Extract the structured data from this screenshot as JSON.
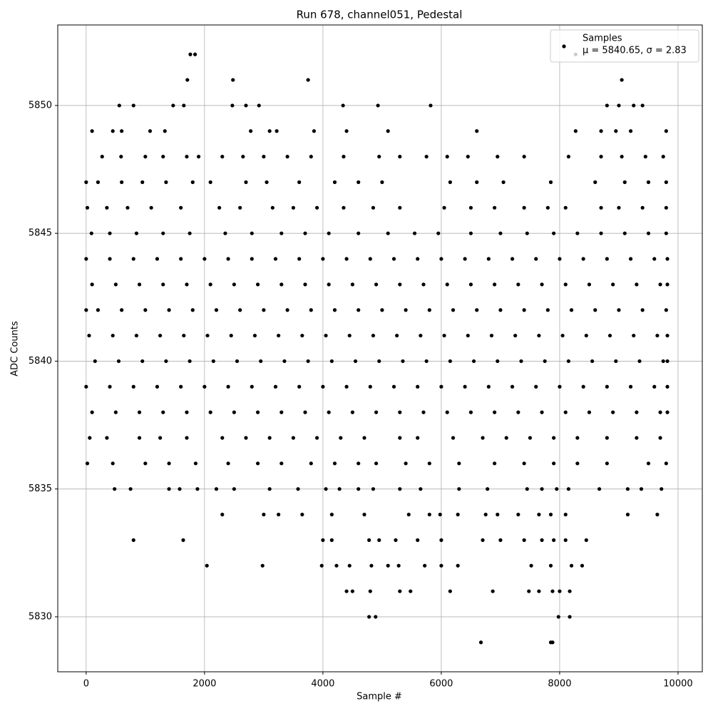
{
  "chart_data": {
    "type": "scatter",
    "title": "Run 678, channel051, Pedestal",
    "x_label": "Sample #",
    "y_label": "ADC Counts",
    "xlim": [
      -480,
      10410
    ],
    "ylim": [
      5827.85,
      5853.15
    ],
    "xticks": [
      0,
      2000,
      4000,
      6000,
      8000,
      10000
    ],
    "yticks": [
      5830,
      5835,
      5840,
      5845,
      5850
    ],
    "grid": true,
    "legend": "upper right",
    "series": [
      {
        "name": "Samples",
        "legend_note": "μ = 5840.65, σ = 2.83",
        "color": "#000000",
        "points": [
          {
            "y": 5844,
            "x": [
              0,
              400,
              800,
              1200,
              1600,
              2000,
              2400,
              2800,
              3200,
              3600,
              4000,
              4400,
              4800,
              5200,
              5600,
              6000,
              6400,
              6800,
              7200,
              7600,
              8000,
              8400,
              8800,
              9200,
              9600,
              9820
            ]
          },
          {
            "y": 5843,
            "x": [
              100,
              500,
              900,
              1300,
              1700,
              2100,
              2500,
              2900,
              3300,
              3700,
              4100,
              4500,
              4900,
              5300,
              5700,
              6100,
              6500,
              6900,
              7300,
              7700,
              8100,
              8500,
              8900,
              9300,
              9700,
              9820
            ]
          },
          {
            "y": 5842,
            "x": [
              0,
              200,
              600,
              1000,
              1400,
              1800,
              2200,
              2600,
              3000,
              3400,
              3800,
              4200,
              4600,
              5000,
              5400,
              5800,
              6200,
              6600,
              7000,
              7400,
              7800,
              8200,
              8600,
              9000,
              9400,
              9800
            ]
          },
          {
            "y": 5841,
            "x": [
              50,
              450,
              850,
              1250,
              1650,
              2050,
              2450,
              2850,
              3250,
              3650,
              4050,
              4450,
              4850,
              5250,
              5650,
              6050,
              6450,
              6850,
              7250,
              7650,
              8050,
              8450,
              8850,
              9250,
              9650,
              9820
            ]
          },
          {
            "y": 5840,
            "x": [
              150,
              550,
              950,
              1350,
              1750,
              2150,
              2550,
              2950,
              3350,
              3750,
              4150,
              4550,
              4950,
              5350,
              5750,
              6150,
              6550,
              6950,
              7350,
              7750,
              8150,
              8550,
              8950,
              9350,
              9750,
              9820
            ]
          },
          {
            "y": 5839,
            "x": [
              0,
              400,
              800,
              1200,
              1600,
              2000,
              2400,
              2800,
              3200,
              3600,
              4000,
              4400,
              4800,
              5200,
              5600,
              6000,
              6400,
              6800,
              7200,
              7600,
              8000,
              8400,
              8800,
              9200,
              9600,
              9820
            ]
          },
          {
            "y": 5838,
            "x": [
              100,
              500,
              900,
              1300,
              1700,
              2100,
              2500,
              2900,
              3300,
              3700,
              4100,
              4500,
              4900,
              5300,
              5700,
              6100,
              6500,
              6900,
              7300,
              7700,
              8100,
              8500,
              8900,
              9300,
              9700,
              9820
            ]
          },
          {
            "y": 5837,
            "x": [
              60,
              350,
              900,
              1250,
              1700,
              2300,
              2700,
              3100,
              3500,
              3900,
              4300,
              4700,
              5300,
              5600,
              6200,
              6700,
              7100,
              7500,
              7900,
              8300,
              8800,
              9300,
              9700
            ]
          },
          {
            "y": 5836,
            "x": [
              20,
              450,
              1000,
              1400,
              1850,
              2400,
              2900,
              3300,
              3800,
              4200,
              4600,
              4900,
              5400,
              5800,
              6300,
              6900,
              7400,
              7900,
              8300,
              8800,
              9500,
              9800
            ]
          },
          {
            "y": 5845,
            "x": [
              90,
              400,
              850,
              1300,
              1750,
              2350,
              2800,
              3300,
              3700,
              4100,
              4600,
              5100,
              5550,
              5950,
              6500,
              7000,
              7450,
              7900,
              8300,
              8700,
              9100,
              9500,
              9800
            ]
          },
          {
            "y": 5846,
            "x": [
              20,
              350,
              700,
              1100,
              1600,
              2250,
              2600,
              3150,
              3500,
              3900,
              4350,
              4850,
              5300,
              6050,
              6500,
              6900,
              7400,
              7800,
              8100,
              8700,
              9000,
              9400,
              9800
            ]
          },
          {
            "y": 5847,
            "x": [
              0,
              200,
              600,
              950,
              1350,
              1800,
              2100,
              2700,
              3050,
              3600,
              4200,
              4600,
              5000,
              6150,
              6600,
              7050,
              7850,
              8600,
              9100,
              9500,
              9800
            ]
          },
          {
            "y": 5848,
            "x": [
              270,
              590,
              1000,
              1300,
              1700,
              1900,
              2300,
              2650,
              3000,
              3400,
              3800,
              4350,
              4950,
              5300,
              5750,
              6100,
              6450,
              6950,
              7400,
              8150,
              8700,
              9050,
              9450,
              9750
            ]
          },
          {
            "y": 5849,
            "x": [
              100,
              450,
              600,
              1080,
              1330,
              2780,
              3100,
              3220,
              3850,
              4400,
              5100,
              6600,
              8270,
              8700,
              8950,
              9200,
              9800
            ]
          },
          {
            "y": 5850,
            "x": [
              560,
              800,
              1470,
              1650,
              2470,
              2700,
              2920,
              4340,
              4930,
              5820,
              8800,
              9000,
              9250,
              9400
            ]
          },
          {
            "y": 5851,
            "x": [
              1710,
              2480,
              3750,
              9050
            ]
          },
          {
            "y": 5852,
            "x": [
              1760,
              1840,
              8270
            ]
          },
          {
            "y": 5835,
            "x": [
              480,
              750,
              1400,
              1580,
              1880,
              2200,
              2500,
              3100,
              3580,
              4050,
              4280,
              4600,
              4850,
              5300,
              5650,
              6300,
              6780,
              7450,
              7700,
              7950,
              8150,
              8670,
              9150,
              9380,
              9720
            ]
          },
          {
            "y": 5834,
            "x": [
              2300,
              3000,
              3250,
              3650,
              4150,
              4700,
              5450,
              5800,
              5980,
              6280,
              6750,
              6950,
              7300,
              7650,
              7850,
              8100,
              9150,
              9650
            ]
          },
          {
            "y": 5833,
            "x": [
              800,
              1640,
              4000,
              4150,
              4780,
              4950,
              5230,
              5600,
              6000,
              6700,
              7000,
              7400,
              7700,
              7900,
              8100,
              8450
            ]
          },
          {
            "y": 5832,
            "x": [
              2040,
              2980,
              3980,
              4230,
              4450,
              4820,
              5100,
              5280,
              5720,
              6000,
              6280,
              7520,
              7850,
              8200,
              8380
            ]
          },
          {
            "y": 5831,
            "x": [
              4400,
              4500,
              4800,
              5300,
              5480,
              6150,
              6870,
              7480,
              7650,
              7880,
              8000,
              8170
            ]
          },
          {
            "y": 5830,
            "x": [
              4780,
              4890,
              7980,
              8170
            ]
          },
          {
            "y": 5829,
            "x": [
              6670,
              7850,
              7880
            ]
          }
        ]
      }
    ]
  }
}
